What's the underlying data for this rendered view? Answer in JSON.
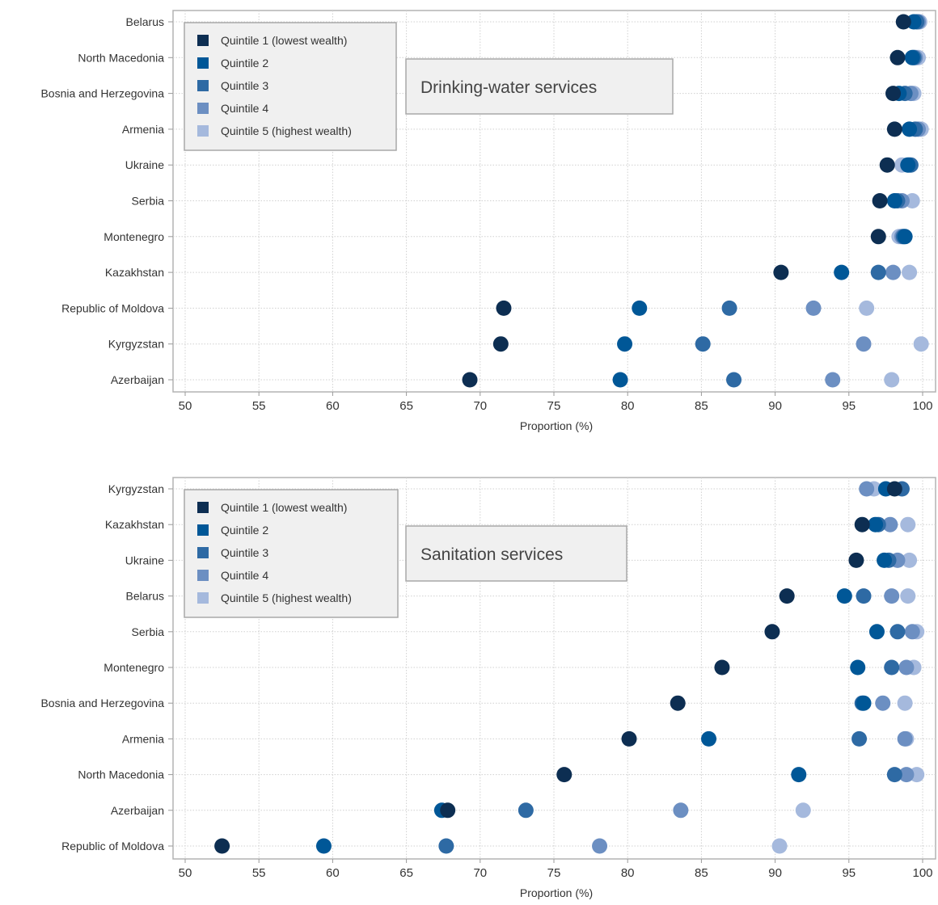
{
  "chart_data": [
    {
      "type": "scatter",
      "annotation": "Drinking-water services",
      "xlabel": "Proportion (%)",
      "ylabel": "",
      "xlim": [
        50,
        100
      ],
      "xticks": [
        50,
        55,
        60,
        65,
        70,
        75,
        80,
        85,
        90,
        95,
        100
      ],
      "grid": true,
      "legend_position": "top-left",
      "categories": [
        "Belarus",
        "North Macedonia",
        "Bosnia and Herzegovina",
        "Armenia",
        "Ukraine",
        "Serbia",
        "Montenegro",
        "Kazakhstan",
        "Republic of Moldova",
        "Kyrgyzstan",
        "Azerbaijan"
      ],
      "series": [
        {
          "name": "Quintile 1 (lowest wealth)",
          "color": "#0d2e52",
          "values": [
            98.7,
            98.3,
            98.0,
            98.1,
            97.6,
            97.1,
            97.0,
            90.4,
            71.6,
            71.4,
            69.3
          ]
        },
        {
          "name": "Quintile 2",
          "color": "#005797",
          "values": [
            99.4,
            99.3,
            98.4,
            99.1,
            99.0,
            98.1,
            98.8,
            94.5,
            80.8,
            79.8,
            79.5
          ]
        },
        {
          "name": "Quintile 3",
          "color": "#2e6aa4",
          "values": [
            99.6,
            99.4,
            98.8,
            99.5,
            99.2,
            98.3,
            98.7,
            97.0,
            86.9,
            85.1,
            87.2
          ]
        },
        {
          "name": "Quintile 4",
          "color": "#6c8fc2",
          "values": [
            99.7,
            99.5,
            99.2,
            99.7,
            99.1,
            98.6,
            98.6,
            98.0,
            92.6,
            96.0,
            93.9
          ]
        },
        {
          "name": "Quintile 5 (highest wealth)",
          "color": "#a5b9dd",
          "values": [
            99.8,
            99.7,
            99.4,
            99.9,
            98.6,
            99.3,
            98.4,
            99.1,
            96.2,
            99.9,
            97.9
          ]
        }
      ]
    },
    {
      "type": "scatter",
      "annotation": "Sanitation services",
      "xlabel": "Proportion (%)",
      "ylabel": "",
      "xlim": [
        50,
        100
      ],
      "xticks": [
        50,
        55,
        60,
        65,
        70,
        75,
        80,
        85,
        90,
        95,
        100
      ],
      "grid": true,
      "legend_position": "top-left",
      "categories": [
        "Kyrgyzstan",
        "Kazakhstan",
        "Ukraine",
        "Belarus",
        "Serbia",
        "Montenegro",
        "Bosnia and Herzegovina",
        "Armenia",
        "North Macedonia",
        "Azerbaijan",
        "Republic of Moldova"
      ],
      "series": [
        {
          "name": "Quintile 1 (lowest wealth)",
          "color": "#0d2e52",
          "values": [
            98.1,
            95.9,
            95.5,
            90.8,
            89.8,
            86.4,
            83.4,
            80.1,
            75.7,
            67.8,
            52.5
          ]
        },
        {
          "name": "Quintile 2",
          "color": "#005797",
          "values": [
            97.5,
            96.8,
            97.4,
            94.7,
            96.9,
            95.6,
            96.0,
            85.5,
            91.6,
            67.4,
            59.4
          ]
        },
        {
          "name": "Quintile 3",
          "color": "#2e6aa4",
          "values": [
            98.6,
            97.0,
            97.7,
            96.0,
            98.3,
            97.9,
            95.9,
            95.7,
            98.1,
            73.1,
            67.7
          ]
        },
        {
          "name": "Quintile 4",
          "color": "#6c8fc2",
          "values": [
            96.2,
            97.8,
            98.3,
            97.9,
            99.3,
            98.9,
            97.3,
            98.8,
            98.9,
            83.6,
            78.1
          ]
        },
        {
          "name": "Quintile 5 (highest wealth)",
          "color": "#a5b9dd",
          "values": [
            96.7,
            99.0,
            99.1,
            99.0,
            99.6,
            99.4,
            98.8,
            98.9,
            99.6,
            91.9,
            90.3
          ]
        }
      ]
    }
  ]
}
